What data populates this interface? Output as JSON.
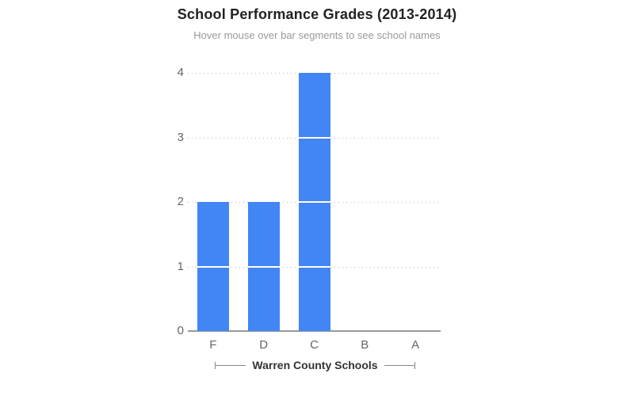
{
  "chart_data": {
    "type": "bar",
    "stacked": true,
    "title": "School Performance Grades (2013-2014)",
    "subtitle": "Hover mouse over bar segments to see school names",
    "xlabel": "Warren County Schools",
    "ylabel": "",
    "categories": [
      "F",
      "D",
      "C",
      "B",
      "A"
    ],
    "values": [
      2,
      2,
      4,
      0,
      0
    ],
    "segments_per_bar": [
      2,
      2,
      4,
      0,
      0
    ],
    "y_ticks": [
      0,
      1,
      2,
      3,
      4
    ],
    "ylim": [
      0,
      4
    ],
    "grid": "horizontal dotted",
    "legend": "none",
    "colors": {
      "bar": "#4285F4",
      "segment_separator": "#ffffff",
      "title_text": "#222222",
      "subtitle_text": "#999999",
      "tick_text": "#666666",
      "axis_label_text": "#333333",
      "gridline": "#bbbbbb",
      "baseline": "#999999",
      "bracket": "#888888"
    }
  }
}
